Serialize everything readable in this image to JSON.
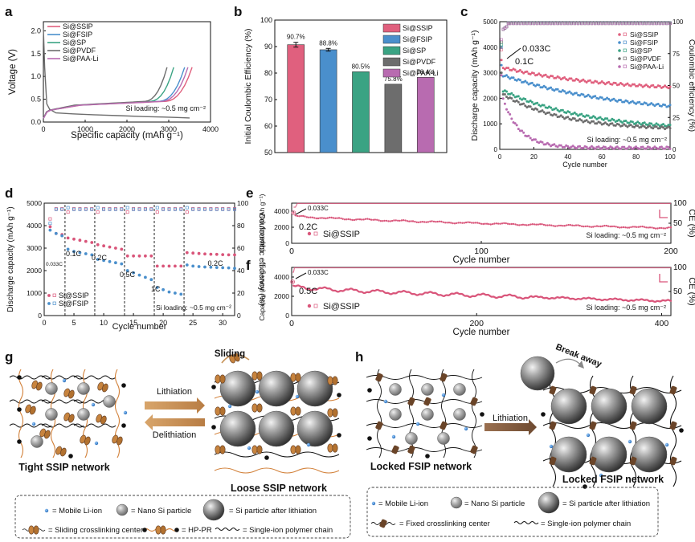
{
  "colors": {
    "ssip": "#e0607e",
    "fsip": "#4a8fcc",
    "sp": "#3aa383",
    "pvdf": "#6d6d6d",
    "paa": "#b86bb0",
    "rate_ssip": "#d9557a",
    "rate_fsip": "#4a8fcc",
    "orange_arrow": "#c8945a",
    "brown_arrow": "#8a6040",
    "chain_orange": "#d2813a",
    "center_brown": "#6a4428",
    "particle_gray": "#7a7a7a"
  },
  "panel_labels": [
    "a",
    "b",
    "c",
    "d",
    "e",
    "f",
    "g",
    "h"
  ],
  "chart_data": [
    {
      "panel": "a",
      "type": "line",
      "xlabel": "Specific capacity (mAh g⁻¹)",
      "ylabel": "Voltage (V)",
      "xlim": [
        0,
        4000
      ],
      "ylim": [
        0,
        2.2
      ],
      "xticks": [
        "0",
        "1000",
        "2000",
        "3000",
        "4000"
      ],
      "yticks": [
        "0.0",
        "0.5",
        "1.0",
        "1.5",
        "2.0"
      ],
      "legend": [
        "Si@SSIP",
        "Si@FSIP",
        "Si@SP",
        "Si@PVDF",
        "Si@PAA-Li"
      ],
      "legend_position": "top-left",
      "annotation": "Si loading: ~0.5 mg cm⁻²",
      "discharge_curve": {
        "x": [
          0,
          30,
          80,
          150,
          300,
          700,
          1200,
          1800,
          2400,
          2900,
          3200,
          3500
        ],
        "y": [
          2.05,
          1.2,
          0.4,
          0.28,
          0.2,
          0.18,
          0.16,
          0.14,
          0.12,
          0.11,
          0.1,
          0.09
        ]
      },
      "charge_end_capacity": {
        "Si@SSIP": 3560,
        "Si@FSIP": 3380,
        "Si@SP": 3120,
        "Si@PVDF": 2960,
        "Si@PAA-Li": 3460
      }
    },
    {
      "panel": "b",
      "type": "bar",
      "ylabel": "Initial Coulombic Efficiency (%)",
      "ylim": [
        50,
        100
      ],
      "yticks": [
        "50",
        "60",
        "70",
        "80",
        "90",
        "100"
      ],
      "categories": [
        "Si@SSIP",
        "Si@FSIP",
        "Si@SP",
        "Si@PVDF",
        "Si@PAA-Li"
      ],
      "values": [
        90.7,
        88.8,
        80.5,
        75.8,
        78.4
      ],
      "value_labels": [
        "90.7%",
        "88.8%",
        "80.5%",
        "75.8%",
        "78.4%"
      ],
      "errors": [
        0.9,
        0.5,
        0,
        0,
        0
      ],
      "legend_position": "top-right"
    },
    {
      "panel": "c",
      "type": "scatter",
      "xlabel": "Cycle number",
      "ylabel": "Discharge capacity (mAh g⁻¹)",
      "y2label": "Coulombic efficiency (%)",
      "xlim": [
        0,
        100
      ],
      "ylim": [
        0,
        5000
      ],
      "y2lim": [
        0,
        100
      ],
      "xticks": [
        "0",
        "20",
        "40",
        "60",
        "80",
        "100"
      ],
      "yticks": [
        "0",
        "1000",
        "2000",
        "3000",
        "4000",
        "5000"
      ],
      "y2ticks": [
        "0",
        "25",
        "50",
        "75",
        "100"
      ],
      "legend": [
        "Si@SSIP",
        "Si@FSIP",
        "Si@SP",
        "Si@PVDF",
        "Si@PAA-Li"
      ],
      "legend_position": "top-right",
      "annotations": [
        "0.033C",
        "0.1C",
        "Si loading: ~0.5 mg cm⁻²"
      ],
      "series": [
        {
          "name": "Si@SSIP",
          "first": 3500,
          "start": 3200,
          "end": 2250,
          "tau": 60
        },
        {
          "name": "Si@FSIP",
          "first": 3300,
          "start": 2900,
          "end": 1300,
          "tau": 70
        },
        {
          "name": "Si@SP",
          "first": 3000,
          "start": 2300,
          "end": 700,
          "tau": 50
        },
        {
          "name": "Si@PVDF",
          "first": 3000,
          "start": 2150,
          "end": 750,
          "tau": 35
        },
        {
          "name": "Si@PAA-Li",
          "first": 2900,
          "start": 1950,
          "end": 60,
          "tau": 10
        }
      ]
    },
    {
      "panel": "d",
      "type": "scatter",
      "xlabel": "Cycle number",
      "ylabel": "Discharge capacity (mAh g⁻¹)",
      "y2label": "Couloumbic efficiency (%)",
      "xlim": [
        0,
        32
      ],
      "ylim": [
        0,
        5000
      ],
      "y2lim": [
        0,
        100
      ],
      "xticks": [
        "0",
        "5",
        "10",
        "15",
        "20",
        "25",
        "30"
      ],
      "yticks": [
        "0",
        "1000",
        "2000",
        "3000",
        "4000",
        "5000"
      ],
      "y2ticks": [
        "0",
        "20",
        "40",
        "60",
        "80",
        "100"
      ],
      "legend": [
        "Si@SSIP",
        "Si@FSIP"
      ],
      "legend_position": "bottom-left",
      "annotation": "Si loading: ~0.5 mg cm⁻²",
      "rate_labels": [
        "0.033C",
        "0.1C",
        "0.2C",
        "0.5C",
        "1C",
        "0.2C"
      ],
      "segments": [
        {
          "from": 1,
          "to": 3,
          "ssip": [
            3950,
            3650,
            3600
          ],
          "fsip": [
            3800,
            3650,
            3550
          ]
        },
        {
          "from": 4,
          "to": 8,
          "ssip": [
            3450,
            3400,
            3350,
            3300,
            3250
          ],
          "fsip": [
            2950,
            2850,
            2800,
            2750,
            2700
          ]
        },
        {
          "from": 9,
          "to": 13,
          "ssip": [
            3150,
            3100,
            3050,
            3000,
            2950
          ],
          "fsip": [
            2500,
            2450,
            2400,
            2350,
            2300
          ]
        },
        {
          "from": 14,
          "to": 18,
          "ssip": [
            2650,
            2650,
            2650,
            2650,
            2650
          ],
          "fsip": [
            2000,
            1900,
            1800,
            1700,
            1600
          ]
        },
        {
          "from": 19,
          "to": 23,
          "ssip": [
            2200,
            2200,
            2200,
            2200,
            2200
          ],
          "fsip": [
            1250,
            1150,
            1050,
            1000,
            950
          ]
        },
        {
          "from": 24,
          "to": 32,
          "ssip": [
            2800,
            2780,
            2760,
            2740,
            2730,
            2720,
            2710,
            2700,
            2700
          ],
          "fsip": [
            2250,
            2200,
            2180,
            2160,
            2150,
            2140,
            2130,
            2120,
            2100
          ]
        }
      ]
    },
    {
      "panel": "e",
      "type": "scatter",
      "xlabel": "Cycle number",
      "ylabel": "Capacity (mAh g⁻¹)",
      "y2label": "CE (%)",
      "xlim": [
        0,
        200
      ],
      "ylim": [
        0,
        5000
      ],
      "y2lim": [
        0,
        100
      ],
      "xticks": [
        "0",
        "100",
        "200"
      ],
      "yticks": [
        "0",
        "2000",
        "4000"
      ],
      "y2ticks": [
        "50",
        "100"
      ],
      "legend": [
        "Si@SSIP"
      ],
      "legend_position": "bottom-left",
      "annotations": [
        "0.033C",
        "0.2C",
        "Si loading: ~0.5 mg cm⁻²"
      ],
      "series": [
        {
          "name": "Si@SSIP",
          "first": 3800,
          "start": 3400,
          "end": 1900
        }
      ]
    },
    {
      "panel": "f",
      "type": "scatter",
      "xlabel": "Cycle number",
      "ylabel": "Capacity (mAh g⁻¹)",
      "y2label": "CE (%)",
      "xlim": [
        0,
        410
      ],
      "ylim": [
        0,
        5000
      ],
      "y2lim": [
        0,
        100
      ],
      "xticks": [
        "0",
        "200",
        "400"
      ],
      "yticks": [
        "0",
        "2000",
        "4000"
      ],
      "y2ticks": [
        "50",
        "100"
      ],
      "legend": [
        "Si@SSIP"
      ],
      "legend_position": "bottom-left",
      "annotations": [
        "0.033C",
        "0.5C",
        "Si loading: ~0.5 mg cm⁻²"
      ],
      "series": [
        {
          "name": "Si@SSIP",
          "first": 3500,
          "start": 3000,
          "end": 1500
        }
      ]
    }
  ],
  "schematic_g": {
    "left_title": "Tight SSIP network",
    "right_title": "Loose SSIP network",
    "forward_arrow": "Lithiation",
    "backward_arrow": "Delithiation",
    "sliding_label": "Sliding",
    "legend": {
      "mobile_ion": "= Mobile Li-ion",
      "nano_si": "= Nano Si particle",
      "si_after": "= Si particle after lithiation",
      "sliding_center": "= Sliding crosslinking center",
      "hp_pr": "= HP-PR",
      "polymer_chain": "= Single-ion polymer chain"
    }
  },
  "schematic_h": {
    "left_title": "Locked FSIP network",
    "right_title": "Locked FSIP network",
    "forward_arrow": "Lithiation",
    "break_label": "Break away",
    "legend": {
      "mobile_ion": "= Mobile Li-ion",
      "nano_si": "= Nano Si particle",
      "si_after": "= Si particle after lithiation",
      "fixed_center": "= Fixed crosslinking center",
      "polymer_chain": "= Single-ion polymer chain"
    }
  }
}
